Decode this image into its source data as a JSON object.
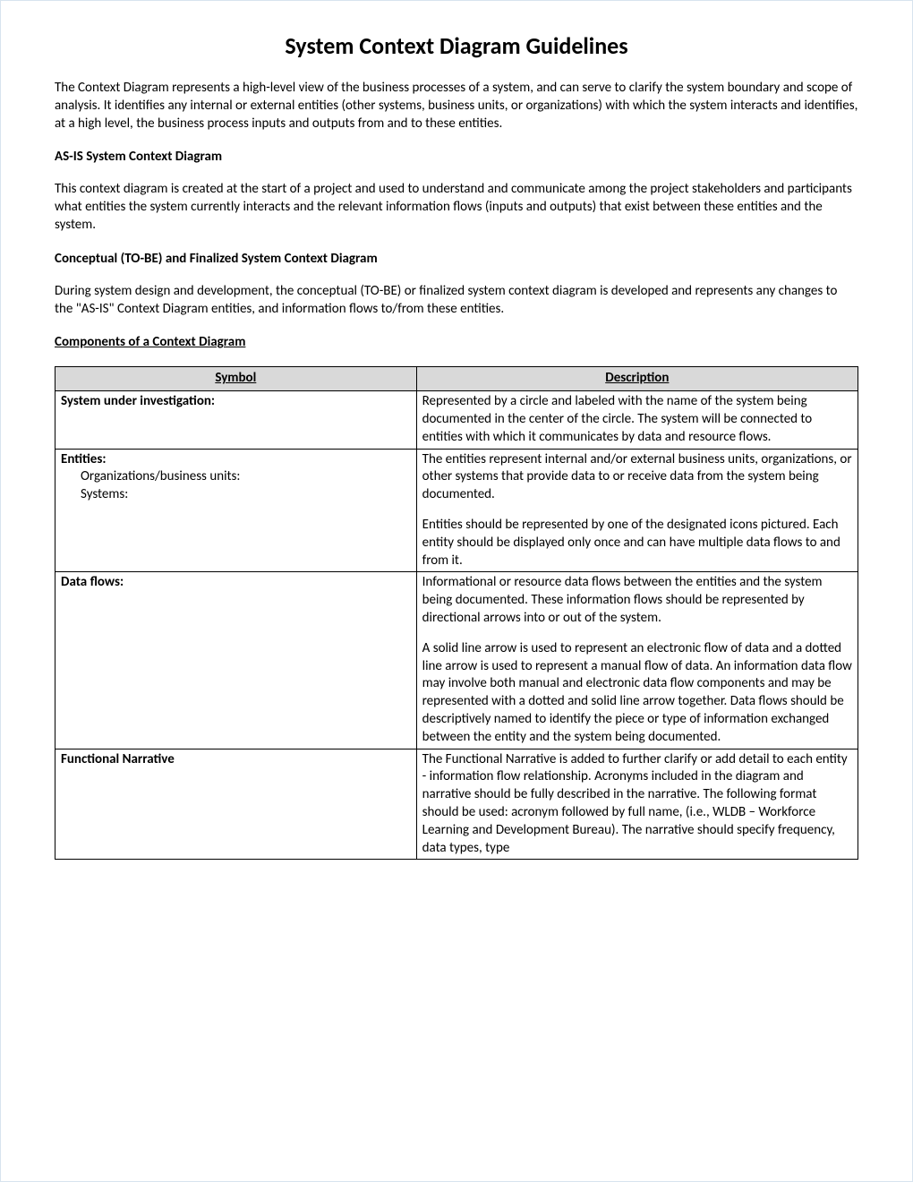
{
  "title": "System Context Diagram Guidelines",
  "intro": "The Context Diagram represents a high-level view of the business processes of a system, and can serve to clarify the system boundary and scope of analysis. It identifies any internal or external entities (other systems, business units, or organizations) with which the system interacts and identifies, at a high level, the business process inputs and outputs from and to these entities.",
  "asis_head": "AS-IS System Context Diagram",
  "asis_body": "This context diagram is created at the start of a project and used to understand and communicate among the project stakeholders and participants what entities the system currently interacts and the relevant information flows (inputs and outputs) that exist between these entities and the system.",
  "tobe_head": "Conceptual (TO-BE) and Finalized System Context Diagram",
  "tobe_body": "During system design and development, the conceptual (TO-BE) or finalized system context diagram is developed and represents any changes to the \"AS-IS\" Context Diagram entities, and information flows to/from these entities.",
  "components_head": "Components of a Context Diagram",
  "table": {
    "headers": {
      "symbol": "Symbol",
      "description": "Description"
    },
    "rows": [
      {
        "symbol_main": "System under investigation:",
        "symbol_sub": [],
        "desc": [
          "Represented by a circle and labeled with the name of the system being documented in the center of the circle. The system will be connected to entities with which it communicates by data and resource flows."
        ]
      },
      {
        "symbol_main": "Entities:",
        "symbol_sub": [
          "Organizations/business units:",
          "",
          "Systems:"
        ],
        "desc": [
          "The entities represent internal and/or external business units, organizations, or other systems that provide data to or receive data from the system being documented.",
          "Entities should be represented by one of the designated icons pictured.  Each entity should be displayed only once and can have multiple data flows to and from it."
        ]
      },
      {
        "symbol_main": "Data flows:",
        "symbol_sub": [],
        "desc": [
          "Informational or resource data flows between the entities and the system being documented. These information flows should be represented by directional arrows into or out of the system.",
          "A solid line arrow is used to represent an electronic flow of data and a dotted line arrow is used to represent a manual flow of data. An information data flow may involve both manual and electronic data flow components and may be represented with a dotted and solid line arrow together. Data flows should be descriptively named to identify the piece or type of information exchanged between the entity and the system being documented."
        ]
      },
      {
        "symbol_main": "Functional Narrative",
        "symbol_sub": [],
        "desc": [
          "The Functional Narrative is added to further clarify or add detail to each entity - information flow relationship. Acronyms included in the diagram and narrative should be fully described in the narrative.  The following format should be used: acronym followed by full name, (i.e., WLDB – Workforce Learning and Development Bureau). The narrative should specify frequency, data types, type"
        ]
      }
    ]
  }
}
